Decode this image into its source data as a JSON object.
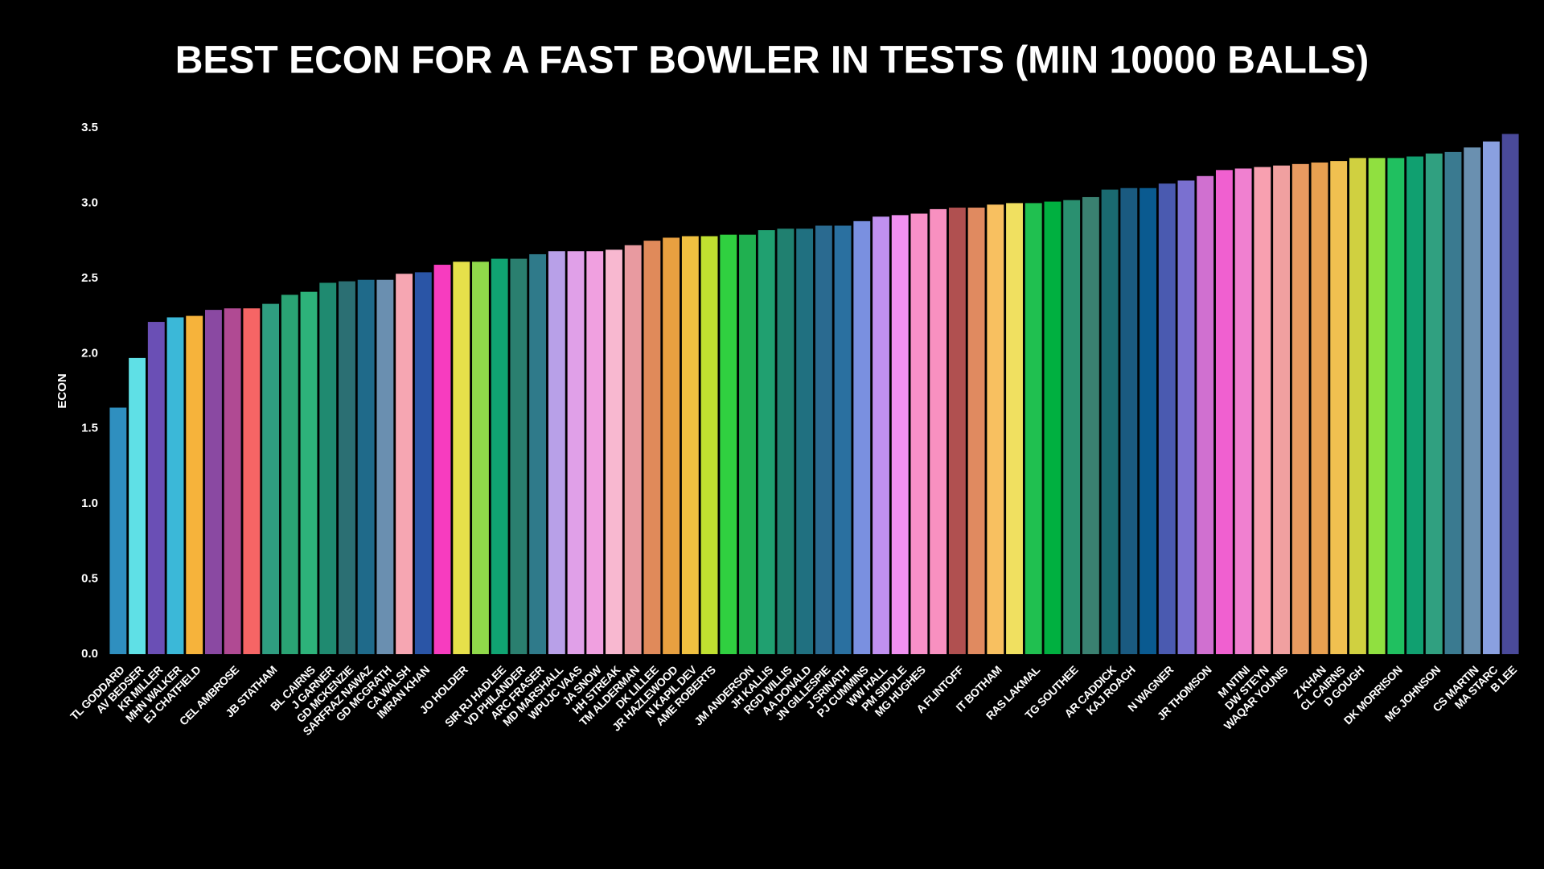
{
  "chart_data": {
    "type": "bar",
    "title": "BEST ECON FOR A FAST BOWLER IN TESTS (MIN 10000 BALLS)",
    "y_label": "ECON",
    "categories": [
      "TL GODDARD",
      "AV BEDSER",
      "KR MILLER",
      "MHN WALKER",
      "EJ CHATFIELD",
      null,
      "CEL AMBROSE",
      null,
      "JB STATHAM",
      null,
      "BL CAIRNS",
      "J GARNER",
      "GD MCKENZIE",
      "SARFRAZ NAWAZ",
      "GD MCGRATH",
      "CA WALSH",
      "IMRAN KHAN",
      null,
      "JO HOLDER",
      null,
      "SIR RJ HADLEE",
      "VD PHILANDER",
      "ARC FRASER",
      "MD MARSHALL",
      "WPUJC VAAS",
      "JA SNOW",
      "HH STREAK",
      "TM ALDERMAN",
      "DK LILLEE",
      "JR HAZLEWOOD",
      "N KAPIL DEV",
      "AME ROBERTS",
      null,
      "JM ANDERSON",
      "JH KALLIS",
      "RGD WILLIS",
      "AA DONALD",
      "JN GILLESPIE",
      "J SRINATH",
      "PJ CUMMINS",
      "WW HALL",
      "PM SIDDLE",
      "MG HUGHES",
      null,
      "A FLINTOFF",
      null,
      "IT BOTHAM",
      null,
      "RAS LAKMAL",
      null,
      "TG SOUTHEE",
      null,
      "AR CADDICK",
      "KAJ ROACH",
      null,
      "N WAGNER",
      null,
      "JR THOMSON",
      null,
      "M NTINI",
      "DW STEYN",
      "WAQAR YOUNIS",
      null,
      "Z KHAN",
      "CL CAIRNS",
      "D GOUGH",
      null,
      "DK MORRISON",
      null,
      "MG JOHNSON",
      null,
      "CS MARTIN",
      "MA STARC",
      "B LEE"
    ],
    "values": [
      1.64,
      1.97,
      2.21,
      2.24,
      2.25,
      2.29,
      2.3,
      2.3,
      2.33,
      2.39,
      2.41,
      2.47,
      2.48,
      2.49,
      2.49,
      2.53,
      2.54,
      2.59,
      2.61,
      2.61,
      2.63,
      2.63,
      2.66,
      2.68,
      2.68,
      2.68,
      2.69,
      2.72,
      2.75,
      2.77,
      2.78,
      2.78,
      2.79,
      2.79,
      2.82,
      2.83,
      2.83,
      2.85,
      2.85,
      2.88,
      2.91,
      2.92,
      2.93,
      2.96,
      2.97,
      2.97,
      2.99,
      3.0,
      3.0,
      3.01,
      3.02,
      3.04,
      3.09,
      3.1,
      3.1,
      3.13,
      3.15,
      3.18,
      3.22,
      3.23,
      3.24,
      3.25,
      3.26,
      3.27,
      3.28,
      3.3,
      3.3,
      3.3,
      3.31,
      3.33,
      3.34,
      3.37,
      3.41,
      3.46
    ],
    "colors": [
      "#2f8fbf",
      "#5fe0e6",
      "#6a4fb5",
      "#3bb8d8",
      "#f6b33b",
      "#8a49a2",
      "#b04a93",
      "#f66565",
      "#2f9d80",
      "#2aa374",
      "#2db27a",
      "#1f8a70",
      "#2b6f73",
      "#1f6a8a",
      "#6a8fb0",
      "#f6a6b2",
      "#2a55a6",
      "#f73cbf",
      "#e6e04a",
      "#90d94a",
      "#10a472",
      "#2a7f6f",
      "#2f7a8a",
      "#b8a0e8",
      "#e0a0e8",
      "#f0a0e0",
      "#f8b8d0",
      "#e89aa0",
      "#e08a5a",
      "#e8a040",
      "#f0c040",
      "#c0e030",
      "#30d040",
      "#20b050",
      "#20a070",
      "#208070",
      "#207080",
      "#2a6a90",
      "#2a70a0",
      "#7a90e0",
      "#c090f0",
      "#f090f0",
      "#f890c8",
      "#f890c0",
      "#b05050",
      "#e08a60",
      "#f8c060",
      "#f0e060",
      "#20c050",
      "#00b040",
      "#2a9070",
      "#3a8070",
      "#1a6a70",
      "#1a5a80",
      "#0a5a90",
      "#4a5ab0",
      "#7a70d0",
      "#d070d0",
      "#f060d0",
      "#f080d0",
      "#f8a0b0",
      "#f0a0a0",
      "#e89a60",
      "#e8a050",
      "#f0c050",
      "#d0d040",
      "#90e040",
      "#20c060",
      "#10a070",
      "#30a080",
      "#3a7a90",
      "#6a90b0",
      "#8aa0e0",
      "#4a4a9a"
    ],
    "ylim": [
      0,
      3.5
    ],
    "yticks": [
      {
        "value": 0,
        "label": "0.0"
      },
      {
        "value": 0.5,
        "label": "0.5"
      },
      {
        "value": 1,
        "label": "1.0"
      },
      {
        "value": 1.5,
        "label": "1.5"
      },
      {
        "value": 2,
        "label": "2.0"
      },
      {
        "value": 2.5,
        "label": "2.5"
      },
      {
        "value": 3,
        "label": "3.0"
      },
      {
        "value": 3.5,
        "label": "3.5"
      }
    ],
    "grid": false
  }
}
